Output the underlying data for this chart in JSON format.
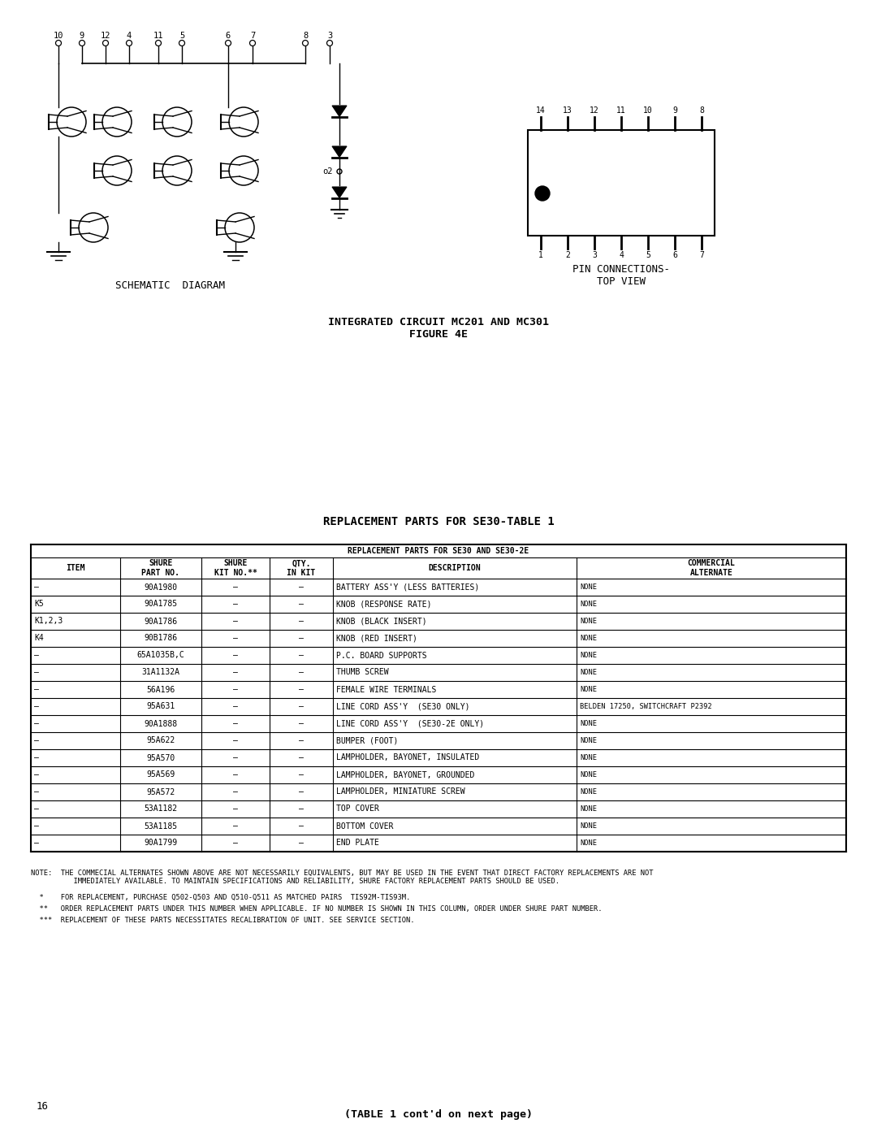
{
  "bg_color": "#ffffff",
  "title_schematic": "SCHEMATIC  DIAGRAM",
  "title_pin": "PIN CONNECTIONS-\nTOP VIEW",
  "title_ic": "INTEGRATED CIRCUIT MC201 AND MC301\nFIGURE 4E",
  "title_table": "REPLACEMENT PARTS FOR SE30-TABLE 1",
  "table_header_top": "REPLACEMENT PARTS FOR SE30 AND SE30-2E",
  "table_col_headers": [
    "ITEM",
    "SHURE\nPART NO.",
    "SHURE\nKIT NO.**",
    "QTY.\nIN KIT",
    "DESCRIPTION",
    "COMMERCIAL\nALTERNATE"
  ],
  "table_rows": [
    [
      "—",
      "90A1980",
      "—",
      "—",
      "BATTERY ASS'Y (LESS BATTERIES)",
      "NONE"
    ],
    [
      "K5",
      "90A1785",
      "—",
      "—",
      "KNOB (RESPONSE RATE)",
      "NONE"
    ],
    [
      "K1,2,3",
      "90A1786",
      "—",
      "—",
      "KNOB (BLACK INSERT)",
      "NONE"
    ],
    [
      "K4",
      "90B1786",
      "—",
      "—",
      "KNOB (RED INSERT)",
      "NONE"
    ],
    [
      "—",
      "65A1035B,C",
      "—",
      "—",
      "P.C. BOARD SUPPORTS",
      "NONE"
    ],
    [
      "—",
      "31A1132A",
      "—",
      "—",
      "THUMB SCREW",
      "NONE"
    ],
    [
      "—",
      "56A196",
      "—",
      "—",
      "FEMALE WIRE TERMINALS",
      "NONE"
    ],
    [
      "—",
      "95A631",
      "—",
      "—",
      "LINE CORD ASS'Y  (SE30 ONLY)",
      "BELDEN 17250, SWITCHCRAFT P2392"
    ],
    [
      "—",
      "90A1888",
      "—",
      "—",
      "LINE CORD ASS'Y  (SE30-2E ONLY)",
      "NONE"
    ],
    [
      "—",
      "95A622",
      "—",
      "—",
      "BUMPER (FOOT)",
      "NONE"
    ],
    [
      "—",
      "95A570",
      "—",
      "—",
      "LAMPHOLDER, BAYONET, INSULATED",
      "NONE"
    ],
    [
      "—",
      "95A569",
      "—",
      "—",
      "LAMPHOLDER, BAYONET, GROUNDED",
      "NONE"
    ],
    [
      "—",
      "95A572",
      "—",
      "—",
      "LAMPHOLDER, MINIATURE SCREW",
      "NONE"
    ],
    [
      "—",
      "53A1182",
      "—",
      "—",
      "TOP COVER",
      "NONE"
    ],
    [
      "—",
      "53A1185",
      "—",
      "—",
      "BOTTOM COVER",
      "NONE"
    ],
    [
      "—",
      "90A1799",
      "—",
      "—",
      "END PLATE",
      "NONE"
    ]
  ],
  "note_text": "NOTE:  THE COMMECIAL ALTERNATES SHOWN ABOVE ARE NOT NECESSARILY EQUIVALENTS, BUT MAY BE USED IN THE EVENT THAT DIRECT FACTORY REPLACEMENTS ARE NOT\n          IMMEDIATELY AVAILABLE. TO MAINTAIN SPECIFICATIONS AND RELIABILITY, SHURE FACTORY REPLACEMENT PARTS SHOULD BE USED.",
  "note1": "  *    FOR REPLACEMENT, PURCHASE Q502-Q503 AND Q510-Q511 AS MATCHED PAIRS  TIS92M-TIS93M.",
  "note2": "  **   ORDER REPLACEMENT PARTS UNDER THIS NUMBER WHEN APPLICABLE. IF NO NUMBER IS SHOWN IN THIS COLUMN, ORDER UNDER SHURE PART NUMBER.",
  "note3": "  ***  REPLACEMENT OF THESE PARTS NECESSITATES RECALIBRATION OF UNIT. SEE SERVICE SECTION.",
  "page_num": "16",
  "footer": "(TABLE 1 cont'd on next page)"
}
